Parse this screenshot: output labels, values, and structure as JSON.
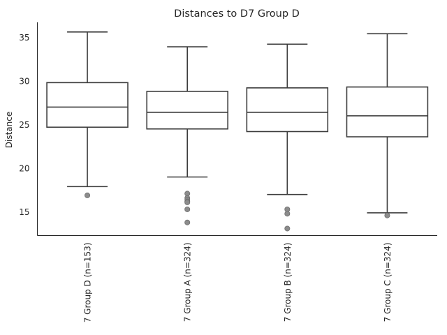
{
  "chart_data": {
    "type": "box",
    "title": "Distances to D7 Group D",
    "xlabel": "",
    "ylabel": "Distance",
    "ylim": [
      12.3,
      36.7
    ],
    "yticks": [
      15,
      20,
      25,
      30,
      35
    ],
    "grid": false,
    "categories": [
      "7 Group D (n=153)",
      "7 Group A (n=324)",
      "7 Group B (n=324)",
      "7 Group C (n=324)"
    ],
    "boxes": [
      {
        "whisker_low": 17.9,
        "q1": 24.7,
        "median": 27.0,
        "q3": 29.8,
        "whisker_high": 35.6,
        "outliers": [
          16.9
        ]
      },
      {
        "whisker_low": 19.0,
        "q1": 24.5,
        "median": 26.4,
        "q3": 28.8,
        "whisker_high": 33.9,
        "outliers": [
          17.1,
          16.6,
          16.4,
          16.2,
          16.1,
          15.3,
          13.8
        ]
      },
      {
        "whisker_low": 17.0,
        "q1": 24.2,
        "median": 26.4,
        "q3": 29.2,
        "whisker_high": 34.2,
        "outliers": [
          15.3,
          14.8,
          13.1
        ]
      },
      {
        "whisker_low": 14.9,
        "q1": 23.6,
        "median": 26.0,
        "q3": 29.3,
        "whisker_high": 35.4,
        "outliers": [
          14.6
        ]
      }
    ]
  }
}
